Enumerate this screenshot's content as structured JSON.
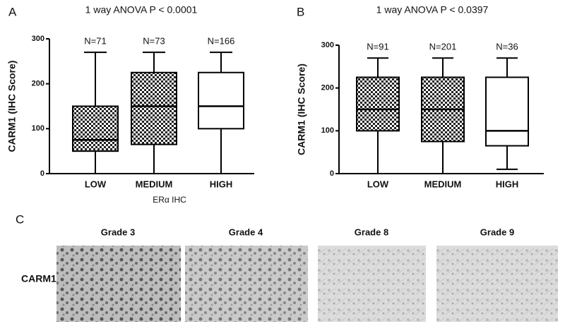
{
  "chart_data": [
    {
      "type": "box",
      "panel_label": "A",
      "title": "1 way ANOVA P < 0.0001",
      "x_label": "ERα IHC",
      "y_label": "CARM1 (IHC Score)",
      "categories": [
        "LOW",
        "MEDIUM",
        "HIGH"
      ],
      "n_labels": [
        "N=71",
        "N=73",
        "N=166"
      ],
      "min": [
        0,
        0,
        0
      ],
      "q1": [
        50,
        65,
        100
      ],
      "median": [
        75,
        150,
        150
      ],
      "q3": [
        150,
        225,
        225
      ],
      "max": [
        270,
        270,
        270
      ],
      "patterned": [
        true,
        true,
        false
      ],
      "ylim": [
        0,
        300
      ],
      "yticks": [
        0,
        100,
        200,
        300
      ]
    },
    {
      "type": "box",
      "panel_label": "B",
      "title": "1 way ANOVA P < 0.0397",
      "y_label": "CARM1 (IHC Score)",
      "categories": [
        "LOW",
        "MEDIUM",
        "HIGH"
      ],
      "n_labels": [
        "N=91",
        "N=201",
        "N=36"
      ],
      "min": [
        0,
        0,
        10
      ],
      "q1": [
        100,
        75,
        65
      ],
      "median": [
        150,
        150,
        100
      ],
      "q3": [
        225,
        225,
        225
      ],
      "max": [
        270,
        270,
        270
      ],
      "patterned": [
        true,
        true,
        false
      ],
      "ylim": [
        0,
        300
      ],
      "yticks": [
        0,
        100,
        200,
        300
      ]
    }
  ],
  "panel_c": {
    "label": "C",
    "row_label": "CARM1",
    "columns": [
      "Grade 3",
      "Grade 4",
      "Grade 8",
      "Grade 9"
    ]
  }
}
